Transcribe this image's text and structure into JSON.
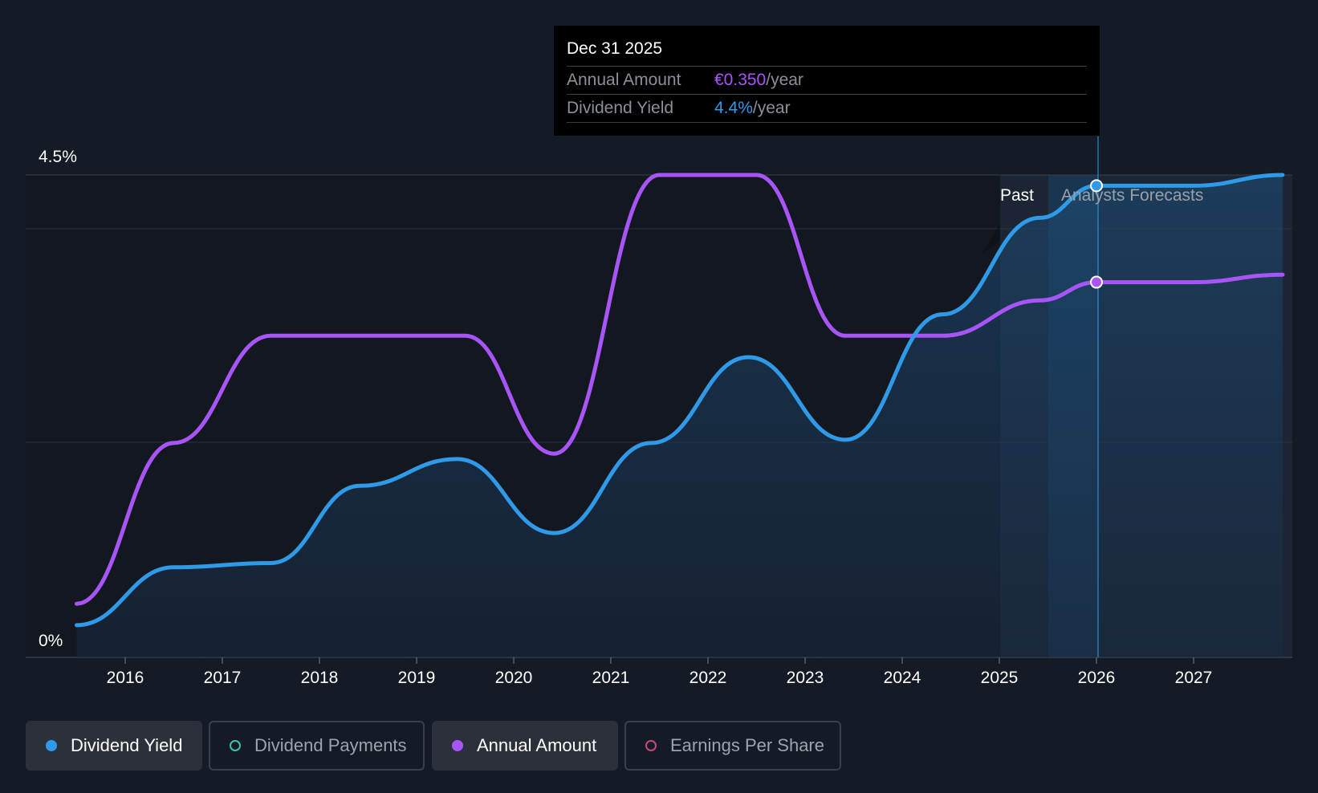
{
  "tooltip": {
    "date": "Dec 31 2025",
    "rows": [
      {
        "label": "Annual Amount",
        "value": "€0.350",
        "suffix": "/year",
        "color": "#a855f7"
      },
      {
        "label": "Dividend Yield",
        "value": "4.4%",
        "suffix": "/year",
        "color": "#2f9ae8"
      }
    ]
  },
  "legend": [
    {
      "label": "Dividend Yield",
      "active": true,
      "filled": true,
      "color": "#2f9ae8"
    },
    {
      "label": "Dividend Payments",
      "active": false,
      "filled": false,
      "color": "#3fc1b0"
    },
    {
      "label": "Annual Amount",
      "active": true,
      "filled": true,
      "color": "#a855f7"
    },
    {
      "label": "Earnings Per Share",
      "active": false,
      "filled": false,
      "color": "#c44b7c"
    }
  ],
  "chart_data": {
    "type": "line",
    "y_ticks": [
      "0%",
      "4.5%"
    ],
    "ylim": [
      0,
      4.5
    ],
    "x_ticks": [
      "2016",
      "2017",
      "2018",
      "2019",
      "2020",
      "2021",
      "2022",
      "2023",
      "2024",
      "2025",
      "2026",
      "2027"
    ],
    "region_labels": {
      "past": "Past",
      "forecast": "Analysts Forecasts"
    },
    "grid": true,
    "series": [
      {
        "name": "Dividend Yield",
        "color": "#2f9ae8",
        "unit": "%",
        "points": [
          [
            "2015-07",
            0.3
          ],
          [
            "2016-07",
            0.84
          ],
          [
            "2017-07",
            0.88
          ],
          [
            "2018-06",
            1.6
          ],
          [
            "2019-06",
            1.85
          ],
          [
            "2020-06",
            1.16
          ],
          [
            "2021-06",
            2.0
          ],
          [
            "2022-06",
            2.8
          ],
          [
            "2023-06",
            2.03
          ],
          [
            "2024-06",
            3.2
          ],
          [
            "2025-06",
            4.1
          ],
          [
            "2026-01",
            4.4
          ],
          [
            "2027-01",
            4.4
          ],
          [
            "2027-12",
            4.5
          ]
        ]
      },
      {
        "name": "Annual Amount",
        "color": "#a855f7",
        "unit": "€/year",
        "points": [
          [
            "2015-07",
            0.05
          ],
          [
            "2016-07",
            0.2
          ],
          [
            "2017-07",
            0.3
          ],
          [
            "2018-07",
            0.3
          ],
          [
            "2019-07",
            0.3
          ],
          [
            "2020-06",
            0.19
          ],
          [
            "2021-07",
            0.45
          ],
          [
            "2022-07",
            0.45
          ],
          [
            "2023-06",
            0.3
          ],
          [
            "2024-06",
            0.3
          ],
          [
            "2025-06",
            0.333
          ],
          [
            "2026-01",
            0.35
          ],
          [
            "2027-01",
            0.35
          ],
          [
            "2027-12",
            0.357
          ]
        ]
      }
    ]
  }
}
